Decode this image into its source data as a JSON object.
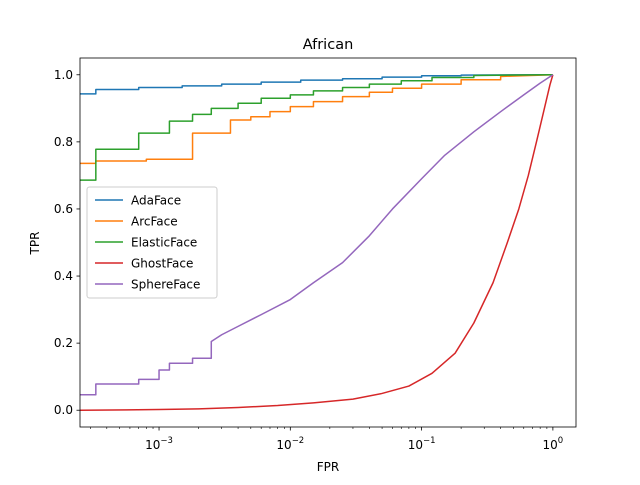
{
  "chart_data": {
    "type": "line",
    "title": "African",
    "xlabel": "FPR",
    "ylabel": "TPR",
    "xscale": "log",
    "xlim": [
      0.00025,
      1.5
    ],
    "ylim": [
      -0.05,
      1.05
    ],
    "xticks": [
      {
        "value": 0.001,
        "base": "10",
        "exp": "−3"
      },
      {
        "value": 0.01,
        "base": "10",
        "exp": "−2"
      },
      {
        "value": 0.1,
        "base": "10",
        "exp": "−1"
      },
      {
        "value": 1,
        "base": "10",
        "exp": "0"
      }
    ],
    "yticks": [
      {
        "value": 0.0,
        "label": "0.0"
      },
      {
        "value": 0.2,
        "label": "0.2"
      },
      {
        "value": 0.4,
        "label": "0.4"
      },
      {
        "value": 0.6,
        "label": "0.6"
      },
      {
        "value": 0.8,
        "label": "0.8"
      },
      {
        "value": 1.0,
        "label": "1.0"
      }
    ],
    "grid": false,
    "legend_position": "center-left",
    "series": [
      {
        "name": "AdaFace",
        "color": "#1f77b4",
        "x": [
          0.00025,
          0.00033,
          0.00033,
          0.0007,
          0.0007,
          0.0015,
          0.0015,
          0.003,
          0.003,
          0.006,
          0.006,
          0.012,
          0.012,
          0.025,
          0.025,
          0.05,
          0.05,
          0.1,
          0.1,
          0.2,
          0.2,
          1.0
        ],
        "y": [
          0.943,
          0.943,
          0.956,
          0.956,
          0.962,
          0.962,
          0.967,
          0.967,
          0.972,
          0.972,
          0.978,
          0.978,
          0.984,
          0.984,
          0.988,
          0.988,
          0.993,
          0.993,
          0.997,
          0.997,
          0.999,
          1.0
        ]
      },
      {
        "name": "ArcFace",
        "color": "#ff7f0e",
        "x": [
          0.00025,
          0.00033,
          0.00033,
          0.0008,
          0.0008,
          0.0018,
          0.0018,
          0.0035,
          0.0035,
          0.0035,
          0.005,
          0.005,
          0.007,
          0.007,
          0.01,
          0.01,
          0.015,
          0.015,
          0.025,
          0.025,
          0.04,
          0.04,
          0.06,
          0.06,
          0.1,
          0.1,
          0.2,
          0.2,
          0.4,
          0.4,
          1.0
        ],
        "y": [
          0.736,
          0.736,
          0.743,
          0.743,
          0.748,
          0.748,
          0.826,
          0.826,
          0.84,
          0.865,
          0.865,
          0.875,
          0.875,
          0.89,
          0.89,
          0.905,
          0.905,
          0.92,
          0.92,
          0.935,
          0.935,
          0.948,
          0.948,
          0.96,
          0.96,
          0.972,
          0.972,
          0.985,
          0.985,
          0.995,
          1.0
        ]
      },
      {
        "name": "ElasticFace",
        "color": "#2ca02c",
        "x": [
          0.00025,
          0.00033,
          0.00033,
          0.0007,
          0.0007,
          0.0012,
          0.0012,
          0.0018,
          0.0018,
          0.0025,
          0.0025,
          0.004,
          0.004,
          0.006,
          0.006,
          0.01,
          0.01,
          0.015,
          0.015,
          0.025,
          0.025,
          0.04,
          0.04,
          0.07,
          0.07,
          0.12,
          0.12,
          0.25,
          0.25,
          1.0
        ],
        "y": [
          0.686,
          0.686,
          0.778,
          0.778,
          0.826,
          0.826,
          0.862,
          0.862,
          0.882,
          0.882,
          0.9,
          0.9,
          0.915,
          0.915,
          0.93,
          0.93,
          0.94,
          0.94,
          0.952,
          0.952,
          0.962,
          0.962,
          0.972,
          0.972,
          0.982,
          0.982,
          0.992,
          0.992,
          0.998,
          1.0
        ]
      },
      {
        "name": "GhostFace",
        "color": "#d62728",
        "x": [
          0.00025,
          0.001,
          0.002,
          0.004,
          0.008,
          0.015,
          0.03,
          0.05,
          0.08,
          0.12,
          0.18,
          0.25,
          0.35,
          0.45,
          0.55,
          0.65,
          0.75,
          0.85,
          0.95,
          1.0
        ],
        "y": [
          0.0,
          0.002,
          0.004,
          0.008,
          0.014,
          0.022,
          0.033,
          0.05,
          0.072,
          0.11,
          0.17,
          0.26,
          0.38,
          0.5,
          0.6,
          0.7,
          0.8,
          0.89,
          0.97,
          1.0
        ]
      },
      {
        "name": "SphereFace",
        "color": "#9467bd",
        "x": [
          0.00025,
          0.00033,
          0.00033,
          0.0007,
          0.0007,
          0.001,
          0.001,
          0.0012,
          0.0012,
          0.0018,
          0.0018,
          0.0025,
          0.0025,
          0.003,
          0.004,
          0.006,
          0.01,
          0.015,
          0.025,
          0.04,
          0.06,
          0.1,
          0.15,
          0.25,
          0.4,
          0.6,
          0.8,
          1.0
        ],
        "y": [
          0.046,
          0.046,
          0.078,
          0.078,
          0.092,
          0.092,
          0.12,
          0.12,
          0.14,
          0.14,
          0.155,
          0.155,
          0.205,
          0.225,
          0.25,
          0.285,
          0.33,
          0.38,
          0.44,
          0.52,
          0.6,
          0.69,
          0.76,
          0.83,
          0.89,
          0.94,
          0.975,
          1.0
        ]
      }
    ]
  }
}
